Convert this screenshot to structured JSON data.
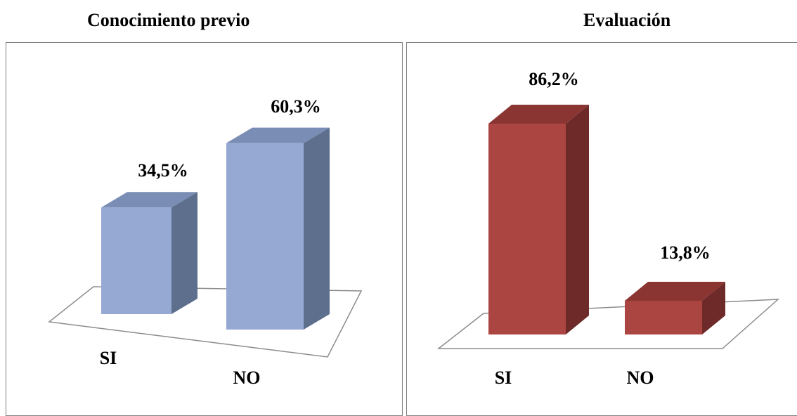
{
  "chart_data": [
    {
      "type": "bar",
      "title": "Conocimiento previo",
      "categories": [
        "SI",
        "NO"
      ],
      "values": [
        34.5,
        60.3
      ],
      "value_labels": [
        "34,5%",
        "60,3%"
      ],
      "colors": {
        "front": "#95a9d3",
        "top": "#7a8db4",
        "side": "#5e6f8e"
      }
    },
    {
      "type": "bar",
      "title": "Evaluación",
      "categories": [
        "SI",
        "NO"
      ],
      "values": [
        86.2,
        13.8
      ],
      "value_labels": [
        "86,2%",
        "13,8%"
      ],
      "colors": {
        "front": "#ab4542",
        "top": "#8b3533",
        "side": "#6d2a28"
      }
    }
  ]
}
